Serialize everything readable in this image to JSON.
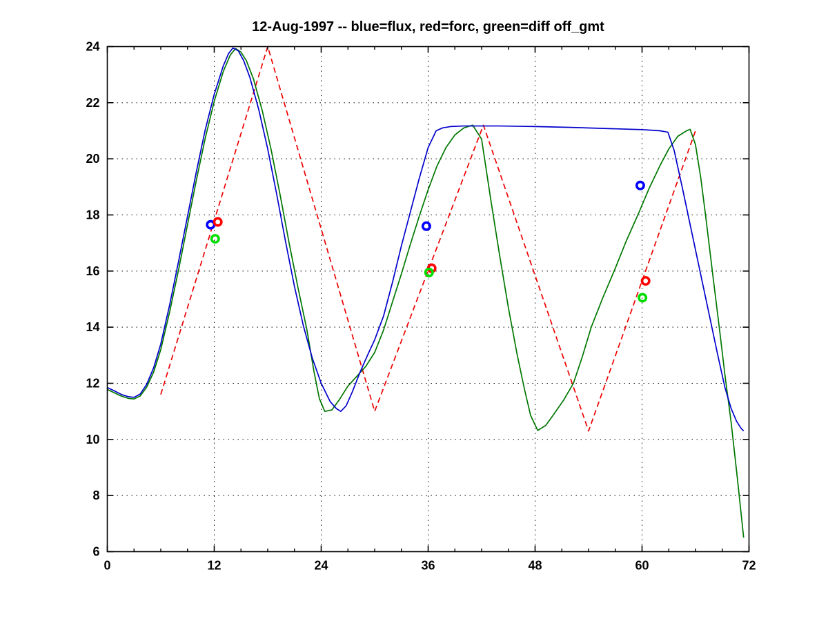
{
  "title": "12-Aug-1997 -- blue=flux, red=forc, green=diff off_gmt",
  "colors": {
    "background": "#ffffff",
    "axis": "#000000",
    "grid": "#000000",
    "flux_line": "#0000cc",
    "forc_line": "#ee0000",
    "diff_line": "#007700",
    "flux_marker": "#0000ff",
    "forc_marker": "#ff0000",
    "diff_marker": "#00dd00"
  },
  "chart_data": {
    "type": "line",
    "title": "12-Aug-1997 -- blue=flux, red=forc, green=diff off_gmt",
    "xlabel": "",
    "ylabel": "",
    "xlim": [
      0,
      72
    ],
    "ylim": [
      6,
      24
    ],
    "xticks": [
      0,
      12,
      24,
      36,
      48,
      60,
      72
    ],
    "xminor_step": 3,
    "yticks": [
      6,
      8,
      10,
      12,
      14,
      16,
      18,
      20,
      22,
      24
    ],
    "grid": "dotted",
    "legend_position": "in-title",
    "legend": [
      {
        "label": "flux",
        "color_name": "blue"
      },
      {
        "label": "forc",
        "color_name": "red"
      },
      {
        "label": "diff",
        "color_name": "green"
      }
    ],
    "series": [
      {
        "name": "forc",
        "color": "#ee0000",
        "style": "dashed",
        "points": [
          [
            6,
            11.6
          ],
          [
            18,
            24
          ],
          [
            30,
            11.0
          ],
          [
            42.2,
            21.2
          ],
          [
            54,
            10.3
          ],
          [
            66,
            21.0
          ]
        ]
      },
      {
        "name": "diff",
        "color": "#007700",
        "style": "solid",
        "points": [
          [
            0,
            11.78
          ],
          [
            0.8,
            11.66
          ],
          [
            1.6,
            11.54
          ],
          [
            2.4,
            11.46
          ],
          [
            3,
            11.44
          ],
          [
            3.7,
            11.55
          ],
          [
            4.4,
            11.85
          ],
          [
            5.2,
            12.4
          ],
          [
            6,
            13.2
          ],
          [
            7,
            14.55
          ],
          [
            8,
            16.05
          ],
          [
            9,
            17.65
          ],
          [
            10,
            19.25
          ],
          [
            11,
            20.75
          ],
          [
            12,
            22.05
          ],
          [
            13,
            23.1
          ],
          [
            13.8,
            23.7
          ],
          [
            14.4,
            23.93
          ],
          [
            15,
            23.8
          ],
          [
            15.6,
            23.5
          ],
          [
            16.4,
            22.85
          ],
          [
            17.4,
            21.7
          ],
          [
            18.4,
            20.3
          ],
          [
            19.4,
            18.7
          ],
          [
            20.4,
            17.0
          ],
          [
            21.4,
            15.4
          ],
          [
            22.4,
            13.9
          ],
          [
            23.2,
            12.4
          ],
          [
            23.8,
            11.45
          ],
          [
            24.4,
            11.0
          ],
          [
            25.2,
            11.05
          ],
          [
            26,
            11.4
          ],
          [
            27,
            11.9
          ],
          [
            28,
            12.25
          ],
          [
            29,
            12.6
          ],
          [
            30,
            13.1
          ],
          [
            31,
            13.9
          ],
          [
            32,
            14.9
          ],
          [
            33,
            15.9
          ],
          [
            34,
            16.95
          ],
          [
            35,
            17.95
          ],
          [
            36,
            18.9
          ],
          [
            37,
            19.75
          ],
          [
            38,
            20.4
          ],
          [
            39,
            20.85
          ],
          [
            40,
            21.1
          ],
          [
            41,
            21.2
          ],
          [
            42,
            20.7
          ],
          [
            43,
            18.6
          ],
          [
            44,
            16.6
          ],
          [
            45,
            14.7
          ],
          [
            46,
            13.0
          ],
          [
            46.8,
            11.8
          ],
          [
            47.5,
            10.85
          ],
          [
            48.3,
            10.32
          ],
          [
            49.2,
            10.5
          ],
          [
            50,
            10.85
          ],
          [
            51.2,
            11.4
          ],
          [
            52.3,
            12.0
          ],
          [
            53.3,
            12.95
          ],
          [
            54.3,
            14.0
          ],
          [
            55.6,
            15.05
          ],
          [
            57,
            16.1
          ],
          [
            58.2,
            17.05
          ],
          [
            59.6,
            18.05
          ],
          [
            60.8,
            18.95
          ],
          [
            62,
            19.75
          ],
          [
            63,
            20.35
          ],
          [
            64,
            20.8
          ],
          [
            65,
            21.0
          ],
          [
            65.4,
            21.05
          ],
          [
            66,
            20.5
          ],
          [
            66.6,
            19.3
          ],
          [
            67.2,
            17.8
          ],
          [
            68,
            15.7
          ],
          [
            68.7,
            13.9
          ],
          [
            69.3,
            12.3
          ],
          [
            70,
            10.6
          ],
          [
            70.7,
            8.6
          ],
          [
            71.4,
            6.5
          ]
        ]
      },
      {
        "name": "flux",
        "color": "#0000cc",
        "style": "solid",
        "points": [
          [
            0,
            11.85
          ],
          [
            0.8,
            11.73
          ],
          [
            1.6,
            11.6
          ],
          [
            2.4,
            11.52
          ],
          [
            3,
            11.5
          ],
          [
            3.7,
            11.62
          ],
          [
            4.4,
            11.95
          ],
          [
            5.2,
            12.55
          ],
          [
            6,
            13.4
          ],
          [
            7,
            14.8
          ],
          [
            8,
            16.35
          ],
          [
            9,
            17.95
          ],
          [
            10,
            19.55
          ],
          [
            11,
            21.05
          ],
          [
            12,
            22.3
          ],
          [
            13,
            23.3
          ],
          [
            13.6,
            23.75
          ],
          [
            14.1,
            23.95
          ],
          [
            14.7,
            23.85
          ],
          [
            15.3,
            23.5
          ],
          [
            16,
            22.9
          ],
          [
            17,
            21.75
          ],
          [
            18,
            20.35
          ],
          [
            19,
            18.75
          ],
          [
            20,
            17.05
          ],
          [
            21,
            15.45
          ],
          [
            22,
            14.05
          ],
          [
            23,
            12.9
          ],
          [
            24,
            12.0
          ],
          [
            25,
            11.35
          ],
          [
            25.7,
            11.1
          ],
          [
            26.2,
            11.0
          ],
          [
            26.8,
            11.2
          ],
          [
            27.5,
            11.7
          ],
          [
            28.3,
            12.35
          ],
          [
            29.2,
            13.0
          ],
          [
            30,
            13.55
          ],
          [
            31,
            14.4
          ],
          [
            32,
            15.6
          ],
          [
            33,
            16.9
          ],
          [
            34,
            18.1
          ],
          [
            35,
            19.3
          ],
          [
            36,
            20.4
          ],
          [
            36.9,
            21.0
          ],
          [
            37.6,
            21.1
          ],
          [
            38.5,
            21.15
          ],
          [
            40,
            21.17
          ],
          [
            44,
            21.17
          ],
          [
            48,
            21.15
          ],
          [
            52,
            21.12
          ],
          [
            56,
            21.08
          ],
          [
            60,
            21.04
          ],
          [
            62,
            21.0
          ],
          [
            62.9,
            20.95
          ],
          [
            63.6,
            20.3
          ],
          [
            64.5,
            19.0
          ],
          [
            65.5,
            17.5
          ],
          [
            66.5,
            16.0
          ],
          [
            67.5,
            14.5
          ],
          [
            68.5,
            13.0
          ],
          [
            69.3,
            11.85
          ],
          [
            70,
            11.1
          ],
          [
            70.6,
            10.65
          ],
          [
            71.1,
            10.4
          ],
          [
            71.4,
            10.3
          ]
        ]
      }
    ],
    "markers": [
      {
        "name": "flux-obs",
        "color": "#0000ff",
        "shape": "circle",
        "points": [
          [
            11.6,
            17.65
          ],
          [
            35.8,
            17.6
          ],
          [
            59.8,
            19.05
          ]
        ]
      },
      {
        "name": "forc-obs",
        "color": "#ff0000",
        "shape": "circle",
        "points": [
          [
            12.4,
            17.75
          ],
          [
            36.4,
            16.1
          ],
          [
            60.4,
            15.65
          ]
        ]
      },
      {
        "name": "diff-obs",
        "color": "#00dd00",
        "shape": "circle",
        "points": [
          [
            12.1,
            17.15
          ],
          [
            36.1,
            15.95
          ],
          [
            60.05,
            15.05
          ]
        ]
      }
    ]
  }
}
